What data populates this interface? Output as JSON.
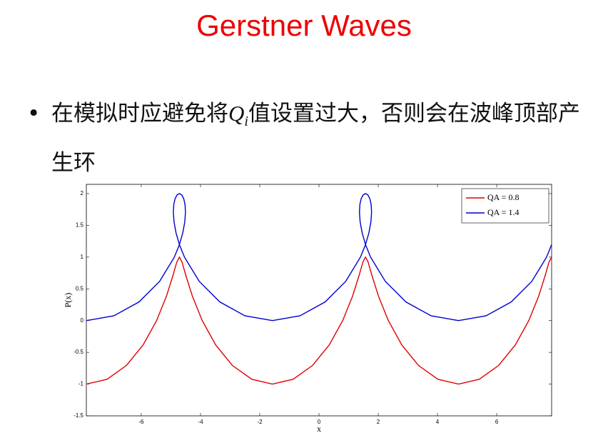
{
  "slide": {
    "title": "Gerstner Waves",
    "bullet": {
      "before": "在模拟时应避免将",
      "symbol": "Q",
      "subscript": "i",
      "after": "值设置过大，否则会在波峰顶部产生环"
    }
  },
  "chart_data": {
    "type": "line",
    "xlabel": "x",
    "ylabel": "P(x)",
    "xlim": [
      -7.854,
      7.854
    ],
    "ylim": [
      -1.5,
      2.146
    ],
    "xticks": [
      -6,
      -4,
      -2,
      0,
      2,
      4,
      6
    ],
    "yticks": [
      -1.5,
      -1,
      -0.5,
      0,
      0.5,
      1,
      1.5,
      2
    ],
    "legend": "northeast",
    "series": [
      {
        "name": "QA = 0.8",
        "color": "#e00000",
        "x": [
          -7.854,
          -7.155,
          -6.503,
          -5.937,
          -5.483,
          -5.151,
          -4.932,
          -4.799,
          -4.712,
          -4.626,
          -4.492,
          -4.273,
          -3.941,
          -3.488,
          -2.922,
          -2.269,
          -1.571,
          -0.872,
          -0.22,
          0.346,
          0.8,
          1.132,
          1.351,
          1.484,
          1.571,
          1.657,
          1.791,
          2.01,
          2.342,
          2.795,
          3.361,
          4.014,
          4.712,
          5.411,
          6.063,
          6.629,
          7.083,
          7.415,
          7.634,
          7.767,
          7.854
        ],
        "values": [
          -1,
          -0.924,
          -0.707,
          -0.383,
          0,
          0.383,
          0.707,
          0.924,
          1,
          0.924,
          0.707,
          0.383,
          0,
          -0.383,
          -0.707,
          -0.924,
          -1,
          -0.924,
          -0.707,
          -0.383,
          0,
          0.383,
          0.707,
          0.924,
          1,
          0.924,
          0.707,
          0.383,
          0,
          -0.383,
          -0.707,
          -0.924,
          -1,
          -0.924,
          -0.707,
          -0.383,
          0,
          0.383,
          0.707,
          0.924,
          1
        ]
      },
      {
        "name": "QA = 1.4",
        "color": "#0000d0",
        "x": [
          -7.854,
          -6.925,
          -6.078,
          -5.382,
          -4.883,
          -4.714,
          -4.597,
          -4.53,
          -4.508,
          -4.523,
          -4.569,
          -4.636,
          -4.712,
          -4.789,
          -4.856,
          -4.901,
          -4.917,
          -4.894,
          -4.827,
          -4.711,
          -4.541,
          -4.042,
          -3.346,
          -2.499,
          -1.571,
          -0.642,
          0.205,
          0.901,
          1.4,
          1.569,
          1.686,
          1.753,
          1.775,
          1.76,
          1.714,
          1.647,
          1.571,
          1.494,
          1.427,
          1.382,
          1.366,
          1.389,
          1.456,
          1.572,
          1.742,
          2.241,
          2.937,
          3.784,
          4.712,
          5.641,
          6.488,
          7.184,
          7.683,
          7.852
        ],
        "values": [
          0,
          0.076,
          0.293,
          0.617,
          1,
          1.195,
          1.383,
          1.556,
          1.707,
          1.832,
          1.924,
          1.981,
          2,
          1.981,
          1.924,
          1.832,
          1.707,
          1.556,
          1.383,
          1.195,
          1,
          0.617,
          0.293,
          0.076,
          0,
          0.076,
          0.293,
          0.617,
          1,
          1.195,
          1.383,
          1.556,
          1.707,
          1.832,
          1.924,
          1.981,
          2,
          1.981,
          1.924,
          1.832,
          1.707,
          1.556,
          1.383,
          1.195,
          1,
          0.617,
          0.293,
          0.076,
          0,
          0.076,
          0.293,
          0.617,
          1,
          1.195
        ]
      }
    ]
  }
}
